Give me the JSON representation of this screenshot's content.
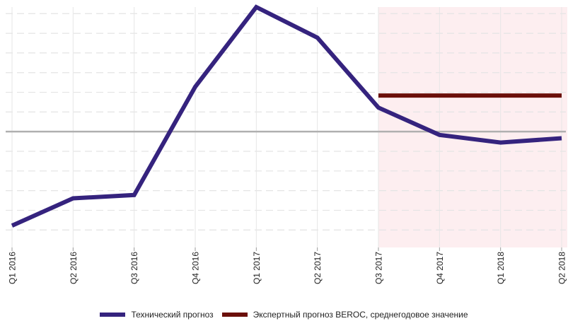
{
  "chart_data": {
    "type": "line",
    "categories": [
      "Q1 2016",
      "Q2 2016",
      "Q3 2016",
      "Q4 2016",
      "Q1 2017",
      "Q2 2017",
      "Q3 2017",
      "Q4 2017",
      "Q1 2018",
      "Q2 2018"
    ],
    "series": [
      {
        "name": "Технический прогноз",
        "color": "#35237e",
        "values": [
          -4.3,
          -3.05,
          -2.9,
          2.05,
          5.7,
          4.3,
          1.1,
          -0.15,
          -0.5,
          -0.3
        ]
      },
      {
        "name": "Экспертный прогноз BEROC, среднегодовое значение",
        "color": "#6b0f0a",
        "x_range": [
          "Q3 2017",
          "Q2 2018"
        ],
        "value": 1.65
      }
    ],
    "ylim": [
      -5.3,
      5.7
    ],
    "y_gridline_step": 0.9,
    "zero_line": true,
    "forecast_region": {
      "start": "Q3 2017",
      "end": "Q2 2018",
      "color": "#fdeef0"
    },
    "legend": "bottom"
  }
}
